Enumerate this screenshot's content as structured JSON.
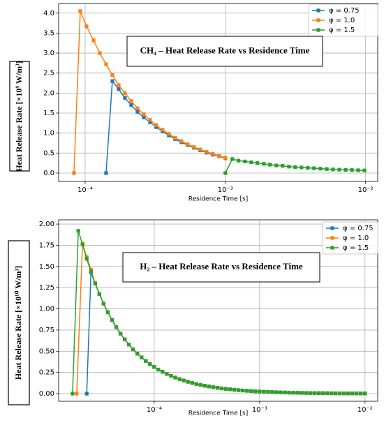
{
  "chart_data": [
    {
      "type": "line",
      "title": "CH₄ – Heat Release Rate vs Residence Time",
      "xlabel": "Residence Time [s]",
      "ylabel": "Heat Release Rate [×10⁹ W/m³]",
      "xscale": "log",
      "xlim": [
        6.47e-05,
        0.0122
      ],
      "ylim": [
        -0.21,
        4.24
      ],
      "xticks": [
        {
          "value": 0.0001,
          "label": "10⁻⁴"
        },
        {
          "value": 0.001,
          "label": "10⁻³"
        },
        {
          "value": 0.01,
          "label": "10⁻²"
        }
      ],
      "yticks": [
        {
          "value": 0,
          "label": "0.0"
        },
        {
          "value": 0.5,
          "label": "0.5"
        },
        {
          "value": 1,
          "label": "1.0"
        },
        {
          "value": 1.5,
          "label": "1.5"
        },
        {
          "value": 2,
          "label": "2.0"
        },
        {
          "value": 2.5,
          "label": "2.5"
        },
        {
          "value": 3,
          "label": "3.0"
        },
        {
          "value": 3.5,
          "label": "3.5"
        },
        {
          "value": 4,
          "label": "4.0"
        }
      ],
      "grid": true,
      "legend": "upper right",
      "x": [
        8.32e-05,
        9.23e-05,
        0.0001023,
        0.0001147,
        0.0001272,
        0.000141,
        0.0001563,
        0.0001733,
        0.0001921,
        0.000213,
        0.000236,
        0.000262,
        0.00029,
        0.000321,
        0.000356,
        0.000395,
        0.000438,
        0.000486,
        0.000538,
        0.000597,
        0.000662,
        0.000734,
        0.000813,
        0.000902,
        0.001,
        0.00112,
        0.00124,
        0.00138,
        0.00153,
        0.00169,
        0.00188,
        0.00208,
        0.00231,
        0.00256,
        0.00284,
        0.00315,
        0.00349,
        0.00387,
        0.00429,
        0.00476,
        0.00528,
        0.00585,
        0.00649,
        0.0072,
        0.00798,
        0.00885,
        0.00982
      ],
      "series": [
        {
          "name": "φ = 0.75",
          "color": "#1f77b4",
          "values": [
            null,
            null,
            null,
            null,
            null,
            0,
            2.3,
            2.1,
            1.88,
            1.7,
            1.53,
            1.39,
            1.27,
            1.15,
            1.04,
            0.94,
            0.85,
            0.77,
            0.7,
            0.63,
            0.57,
            0.51,
            0.46,
            0.42,
            0.37,
            null,
            null,
            null,
            null,
            null,
            null,
            null,
            null,
            null,
            null,
            null,
            null,
            null,
            null,
            null,
            null,
            null,
            null,
            null,
            null,
            null,
            null
          ]
        },
        {
          "name": "φ = 1.0",
          "color": "#ff7f0e",
          "values": [
            0,
            4.05,
            3.67,
            3.32,
            3.0,
            2.72,
            2.45,
            2.2,
            2.0,
            1.8,
            1.62,
            1.47,
            1.33,
            1.2,
            1.08,
            0.98,
            0.88,
            0.8,
            0.72,
            0.65,
            0.59,
            0.53,
            0.48,
            0.43,
            0.38,
            null,
            null,
            null,
            null,
            null,
            null,
            null,
            null,
            null,
            null,
            null,
            null,
            null,
            null,
            null,
            null,
            null,
            null,
            null,
            null,
            null,
            null
          ]
        },
        {
          "name": "φ = 1.5",
          "color": "#2ca02c",
          "values": [
            null,
            null,
            null,
            null,
            null,
            null,
            null,
            null,
            null,
            null,
            null,
            null,
            null,
            null,
            null,
            null,
            null,
            null,
            null,
            null,
            null,
            null,
            null,
            null,
            0,
            0.35,
            0.31,
            0.29,
            0.27,
            0.25,
            0.23,
            0.21,
            0.19,
            0.18,
            0.16,
            0.15,
            0.14,
            0.13,
            0.12,
            0.11,
            0.1,
            0.09,
            0.085,
            0.08,
            0.075,
            0.07,
            0.065
          ]
        }
      ]
    },
    {
      "type": "line",
      "title": "H₂ – Heat Release Rate vs Residence Time",
      "xlabel": "Residence Time [s]",
      "ylabel": "Heat Release Rate [×10¹⁰ W/m³]",
      "xscale": "log",
      "xlim": [
        1.24e-05,
        0.0132
      ],
      "ylim": [
        -0.09,
        2.05
      ],
      "xticks": [
        {
          "value": 0.0001,
          "label": "10⁻⁴"
        },
        {
          "value": 0.001,
          "label": "10⁻³"
        },
        {
          "value": 0.01,
          "label": "10⁻²"
        }
      ],
      "yticks": [
        {
          "value": 0,
          "label": "0.00"
        },
        {
          "value": 0.25,
          "label": "0.25"
        },
        {
          "value": 0.5,
          "label": "0.50"
        },
        {
          "value": 0.75,
          "label": "0.75"
        },
        {
          "value": 1,
          "label": "1.00"
        },
        {
          "value": 1.25,
          "label": "1.25"
        },
        {
          "value": 1.5,
          "label": "1.50"
        },
        {
          "value": 1.75,
          "label": "1.75"
        },
        {
          "value": 2,
          "label": "2.00"
        }
      ],
      "grid": true,
      "legend": "upper right",
      "series": [
        {
          "name": "φ = 0.75",
          "color": "#1f77b4",
          "x": [
            2.29e-05,
            2.512e-05,
            2.754e-05,
            3.02e-05,
            3.311e-05,
            3.631e-05,
            3.981e-05,
            4.365e-05,
            4.786e-05,
            5.248e-05,
            5.754e-05,
            6.31e-05,
            6.918e-05,
            7.586e-05,
            8.318e-05,
            9.12e-05,
            0.0001,
            0.0001096,
            0.0001202,
            0.0001318,
            0.0001445,
            0.0001585,
            0.0001738,
            0.0001905,
            0.0002089,
            0.0002291,
            0.0002512,
            0.0002754,
            0.000302,
            0.0003311,
            0.0003631,
            0.0003981,
            0.0004365,
            0.0004786,
            0.0005248,
            0.0005754,
            0.000631,
            0.0006918,
            0.0007586,
            0.0008318,
            0.000912,
            0.001,
            0.001096,
            0.001202,
            0.001318,
            0.001445,
            0.001585,
            0.001738,
            0.001905,
            0.002089,
            0.002291,
            0.002512,
            0.002754,
            0.00302,
            0.003311,
            0.003631,
            0.003981,
            0.004365,
            0.004786,
            0.005248,
            0.005754,
            0.00631,
            0.006918,
            0.007586,
            0.008318,
            0.00912,
            0.01
          ],
          "values": [
            0,
            1.43,
            1.3,
            1.176,
            1.062,
            0.96,
            0.868,
            0.784,
            0.708,
            0.64,
            0.578,
            0.523,
            0.472,
            0.427,
            0.386,
            0.348,
            0.315,
            0.284,
            0.257,
            0.232,
            0.21,
            0.19,
            0.171,
            0.155,
            0.14,
            0.126,
            0.114,
            0.103,
            0.0932,
            0.0842,
            0.0761,
            0.0688,
            0.0621,
            0.0561,
            0.0507,
            0.0458,
            0.0414,
            0.0374,
            0.0338,
            0.0306,
            0.0276,
            0.025,
            0.0225,
            0.0204,
            0.0184,
            0.0166,
            0.015,
            0.0136,
            0.0123,
            0.0111,
            0.01,
            0.0091,
            0.0082,
            0.0074,
            0.0067,
            0.006,
            0.0054,
            0.0049,
            0.0044,
            0.004,
            0.0036,
            0.0033,
            0.003,
            0.0027,
            0.0024,
            0.0022,
            0.002
          ]
        },
        {
          "name": "φ = 1.0",
          "color": "#ff7f0e",
          "x": [
            1.84e-05,
            2.09e-05,
            2.29e-05,
            2.512e-05,
            2.754e-05,
            3.02e-05,
            3.311e-05,
            3.631e-05,
            3.981e-05,
            4.365e-05,
            4.786e-05,
            5.248e-05,
            5.754e-05,
            6.31e-05,
            6.918e-05,
            7.586e-05,
            8.318e-05,
            9.12e-05,
            0.0001,
            0.0001096,
            0.0001202,
            0.0001318,
            0.0001445,
            0.0001585,
            0.0001738,
            0.0001905,
            0.0002089,
            0.0002291,
            0.0002512,
            0.0002754,
            0.000302,
            0.0003311,
            0.0003631,
            0.0003981,
            0.0004365,
            0.0004786,
            0.0005248,
            0.0005754,
            0.000631,
            0.0006918,
            0.0007586,
            0.0008318,
            0.000912,
            0.001,
            0.001096,
            0.001202,
            0.001318,
            0.001445,
            0.001585,
            0.001738,
            0.001905,
            0.002089,
            0.002291,
            0.002512,
            0.002754,
            0.00302,
            0.003311,
            0.003631,
            0.003981,
            0.004365,
            0.004786,
            0.005248,
            0.005754,
            0.00631,
            0.006918,
            0.007586,
            0.008318,
            0.00912,
            0.01
          ],
          "values": [
            0,
            1.77,
            1.61,
            1.46,
            1.301,
            1.176,
            1.062,
            0.96,
            0.868,
            0.784,
            0.708,
            0.64,
            0.578,
            0.523,
            0.472,
            0.427,
            0.386,
            0.348,
            0.315,
            0.284,
            0.257,
            0.232,
            0.21,
            0.19,
            0.171,
            0.155,
            0.14,
            0.126,
            0.114,
            0.103,
            0.0932,
            0.0842,
            0.0761,
            0.0688,
            0.0621,
            0.0561,
            0.0507,
            0.0458,
            0.0414,
            0.0374,
            0.0338,
            0.0306,
            0.0276,
            0.025,
            0.0225,
            0.0204,
            0.0184,
            0.0166,
            0.015,
            0.0136,
            0.0123,
            0.0111,
            0.01,
            0.0091,
            0.0082,
            0.0074,
            0.0067,
            0.006,
            0.0054,
            0.0049,
            0.0044,
            0.004,
            0.0036,
            0.0033,
            0.003,
            0.0027,
            0.0024,
            0.0022,
            0.002
          ]
        },
        {
          "name": "φ = 1.5",
          "color": "#2ca02c",
          "x": [
            1.68e-05,
            1.905e-05,
            2.09e-05,
            2.29e-05,
            2.512e-05,
            2.754e-05,
            3.02e-05,
            3.311e-05,
            3.631e-05,
            3.981e-05,
            4.365e-05,
            4.786e-05,
            5.248e-05,
            5.754e-05,
            6.31e-05,
            6.918e-05,
            7.586e-05,
            8.318e-05,
            9.12e-05,
            0.0001,
            0.0001096,
            0.0001202,
            0.0001318,
            0.0001445,
            0.0001585,
            0.0001738,
            0.0001905,
            0.0002089,
            0.0002291,
            0.0002512,
            0.0002754,
            0.000302,
            0.0003311,
            0.0003631,
            0.0003981,
            0.0004365,
            0.0004786,
            0.0005248,
            0.0005754,
            0.000631,
            0.0006918,
            0.0007586,
            0.0008318,
            0.000912,
            0.001,
            0.001096,
            0.001202,
            0.001318,
            0.001445,
            0.001585,
            0.001738,
            0.001905,
            0.002089,
            0.002291,
            0.002512,
            0.002754,
            0.00302,
            0.003311,
            0.003631,
            0.003981,
            0.004365,
            0.004786,
            0.005248,
            0.005754,
            0.00631,
            0.006918,
            0.007586,
            0.008318,
            0.00912,
            0.01
          ],
          "values": [
            0,
            1.92,
            1.76,
            1.59,
            1.44,
            1.301,
            1.176,
            1.062,
            0.96,
            0.868,
            0.784,
            0.708,
            0.64,
            0.578,
            0.523,
            0.472,
            0.427,
            0.386,
            0.348,
            0.315,
            0.284,
            0.257,
            0.232,
            0.21,
            0.19,
            0.171,
            0.155,
            0.14,
            0.126,
            0.114,
            0.103,
            0.0932,
            0.0842,
            0.0761,
            0.0688,
            0.0621,
            0.0561,
            0.0507,
            0.0458,
            0.0414,
            0.0374,
            0.0338,
            0.0306,
            0.0276,
            0.025,
            0.0225,
            0.0204,
            0.0184,
            0.0166,
            0.015,
            0.0136,
            0.0123,
            0.0111,
            0.01,
            0.0091,
            0.0082,
            0.0074,
            0.0067,
            0.006,
            0.0054,
            0.0049,
            0.0044,
            0.004,
            0.0036,
            0.0033,
            0.003,
            0.0027,
            0.0024,
            0.0022,
            0.002
          ]
        }
      ]
    }
  ]
}
